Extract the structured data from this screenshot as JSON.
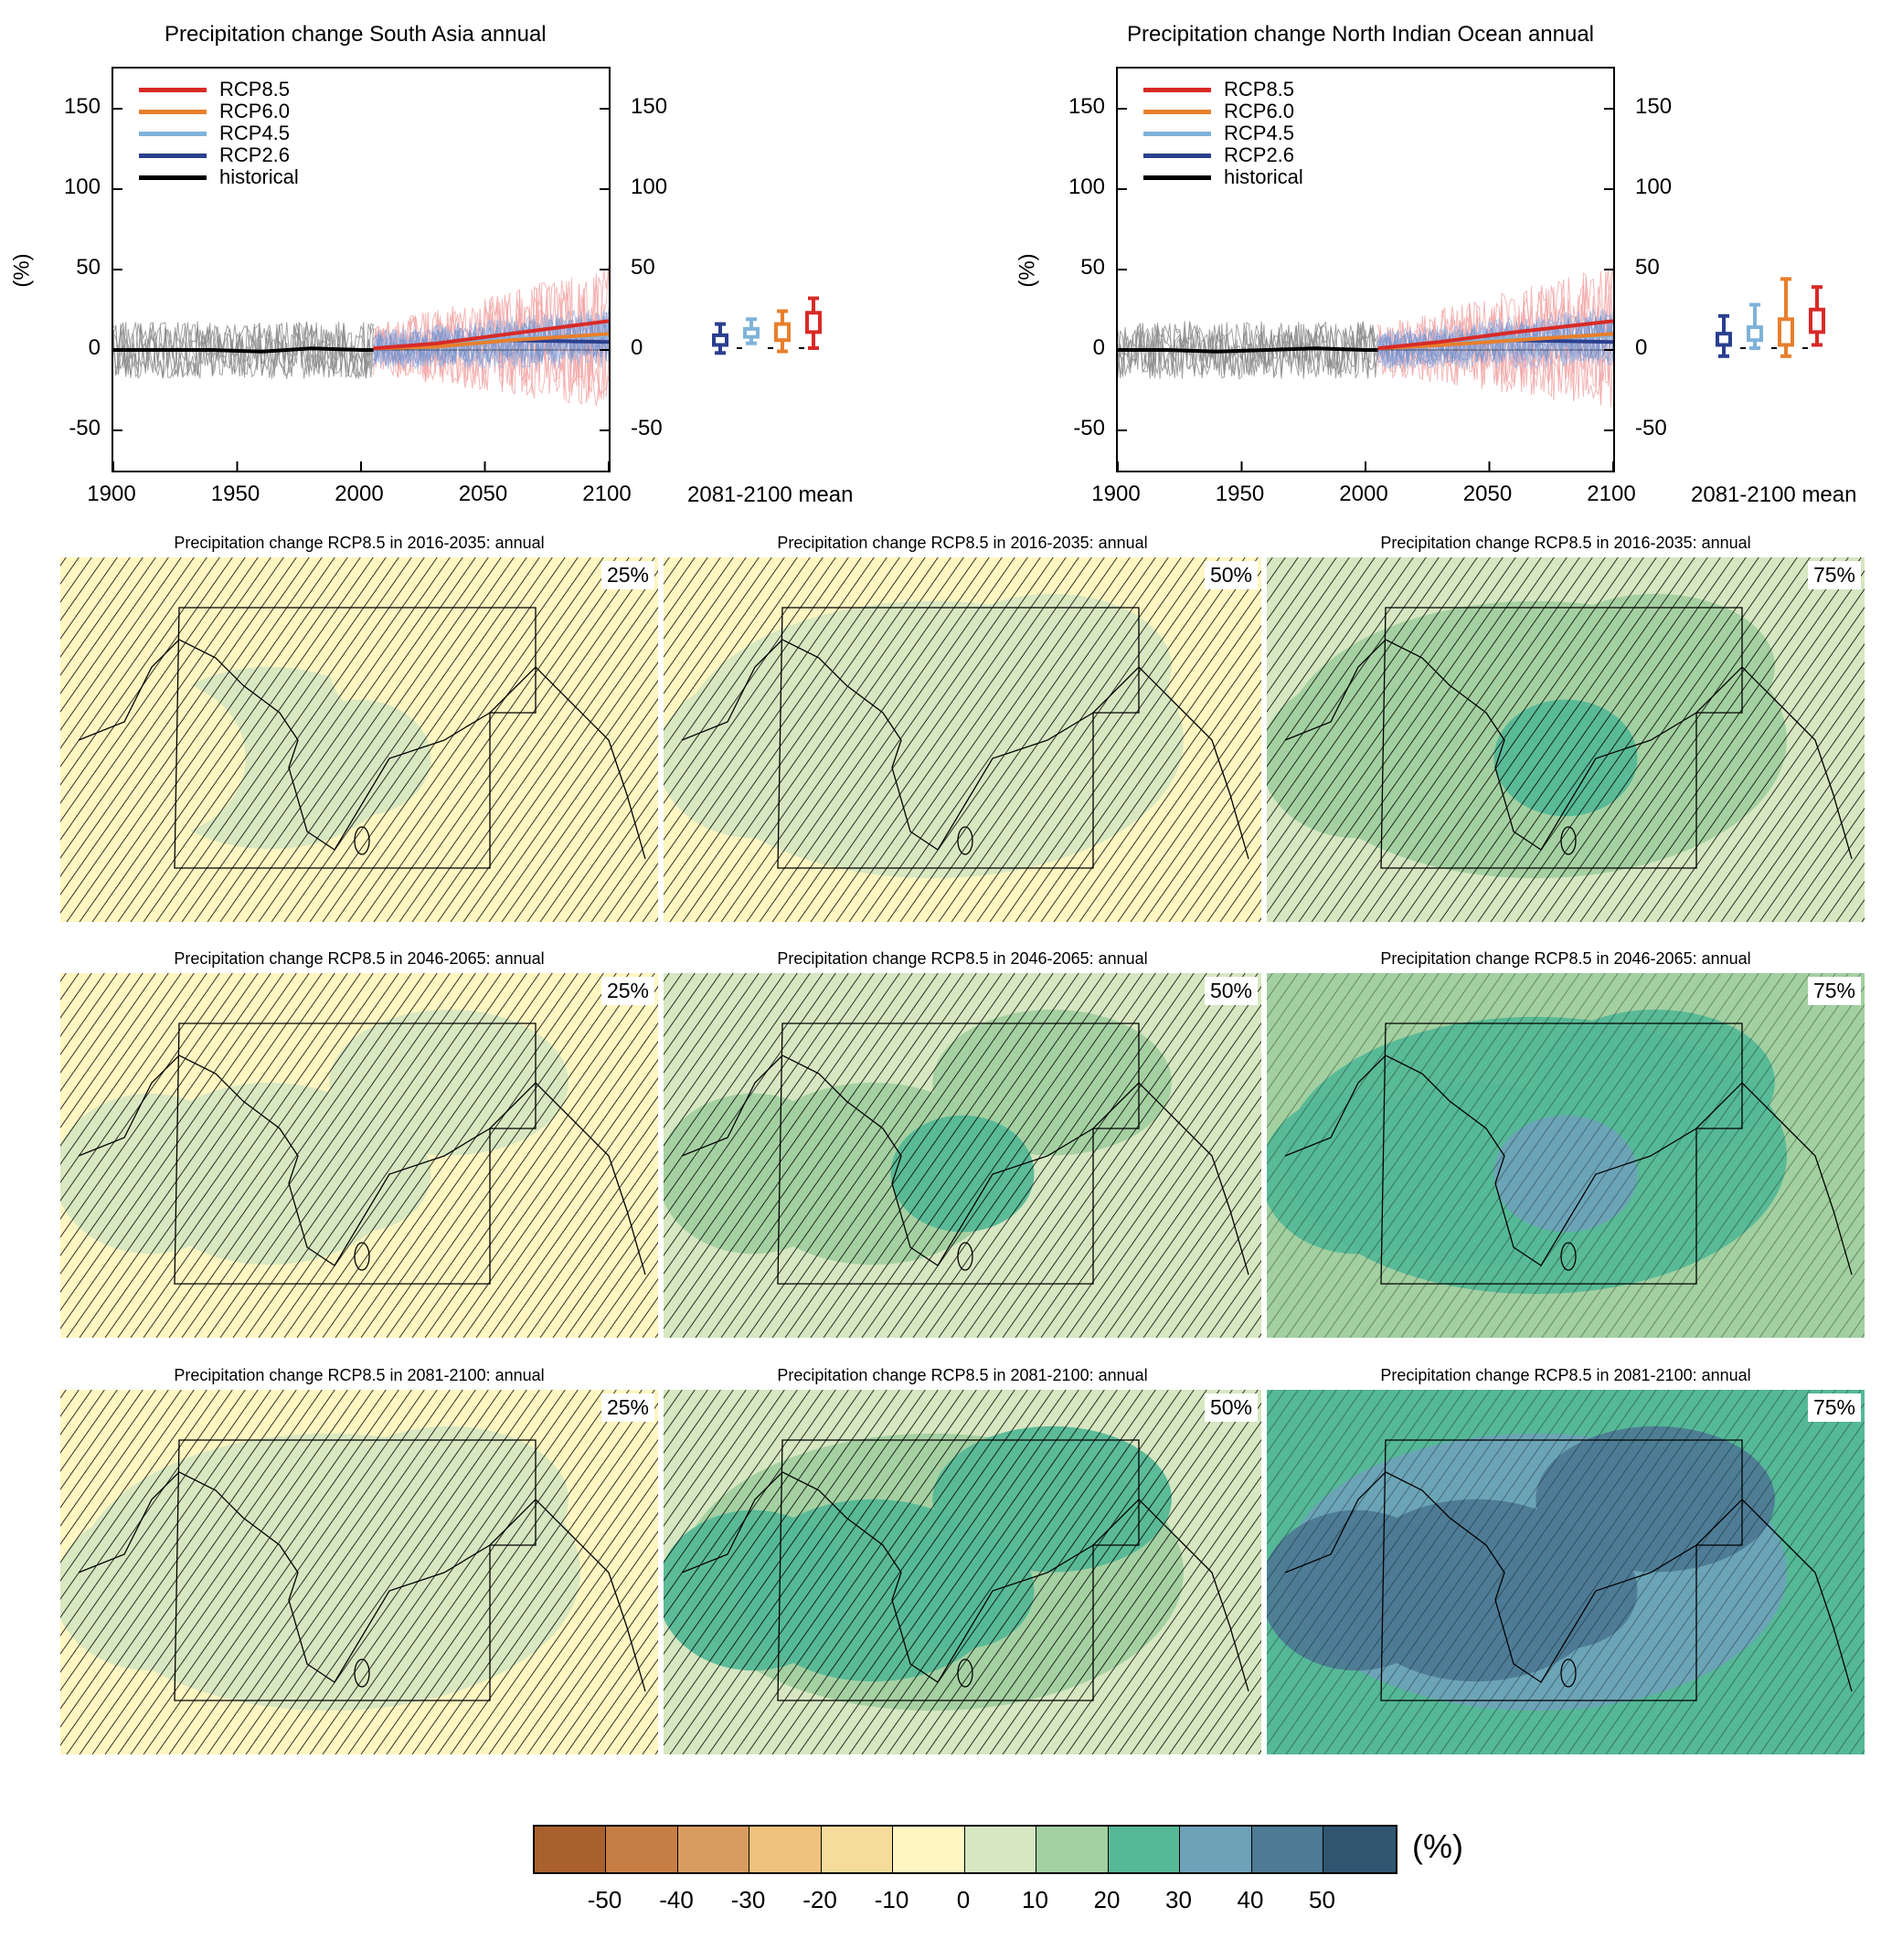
{
  "chart_data": [
    {
      "type": "line",
      "title": "Precipitation change South Asia annual",
      "ylabel": "(%)",
      "xlabel": "",
      "xlim": [
        1900,
        2100
      ],
      "ylim": [
        -75,
        175
      ],
      "x_ticks": [
        "1900",
        "1950",
        "2000",
        "2050",
        "2100"
      ],
      "y_ticks": [
        "150",
        "100",
        "50",
        "0",
        "-50"
      ],
      "legend": [
        "RCP8.5",
        "RCP6.0",
        "RCP4.5",
        "RCP2.6",
        "historical"
      ],
      "legend_position": "top-left",
      "series": [
        {
          "name": "historical",
          "color": "#000000",
          "x": [
            1900,
            1920,
            1940,
            1960,
            1980,
            2000,
            2005
          ],
          "values": [
            0,
            0,
            0,
            -1,
            1,
            0,
            0
          ]
        },
        {
          "name": "RCP2.6",
          "color": "#2b3f8f",
          "x": [
            2005,
            2030,
            2060,
            2100
          ],
          "values": [
            1,
            3,
            6,
            5
          ]
        },
        {
          "name": "RCP4.5",
          "color": "#7fb2d9",
          "x": [
            2005,
            2030,
            2060,
            2100
          ],
          "values": [
            1,
            3,
            7,
            9
          ]
        },
        {
          "name": "RCP6.0",
          "color": "#e87f2c",
          "x": [
            2005,
            2030,
            2060,
            2100
          ],
          "values": [
            1,
            2,
            6,
            10
          ]
        },
        {
          "name": "RCP8.5",
          "color": "#d82a27",
          "x": [
            2005,
            2030,
            2060,
            2100
          ],
          "values": [
            1,
            4,
            10,
            18
          ]
        }
      ],
      "inset": {
        "label": "2081-2100 mean",
        "boxes": [
          {
            "name": "RCP2.6",
            "color": "#2b3f8f",
            "min": -3,
            "q1": 2,
            "median": 5,
            "q3": 8,
            "max": 15
          },
          {
            "name": "RCP4.5",
            "color": "#7fb2d9",
            "min": 3,
            "q1": 7,
            "median": 10,
            "q3": 12,
            "max": 18
          },
          {
            "name": "RCP6.0",
            "color": "#e87f2c",
            "min": -2,
            "q1": 5,
            "median": 10,
            "q3": 15,
            "max": 23
          },
          {
            "name": "RCP8.5",
            "color": "#d82a27",
            "min": 0,
            "q1": 10,
            "median": 17,
            "q3": 22,
            "max": 31
          }
        ]
      }
    },
    {
      "type": "line",
      "title": "Precipitation change North Indian Ocean annual",
      "ylabel": "(%)",
      "xlabel": "",
      "xlim": [
        1900,
        2100
      ],
      "ylim": [
        -75,
        175
      ],
      "x_ticks": [
        "1900",
        "1950",
        "2000",
        "2050",
        "2100"
      ],
      "y_ticks": [
        "150",
        "100",
        "50",
        "0",
        "-50"
      ],
      "legend": [
        "RCP8.5",
        "RCP6.0",
        "RCP4.5",
        "RCP2.6",
        "historical"
      ],
      "legend_position": "top-left",
      "series": [
        {
          "name": "historical",
          "color": "#000000",
          "x": [
            1900,
            1920,
            1940,
            1960,
            1980,
            2000,
            2005
          ],
          "values": [
            0,
            0,
            -1,
            0,
            1,
            0,
            0
          ]
        },
        {
          "name": "RCP2.6",
          "color": "#2b3f8f",
          "x": [
            2005,
            2030,
            2060,
            2100
          ],
          "values": [
            1,
            4,
            6,
            5
          ]
        },
        {
          "name": "RCP4.5",
          "color": "#7fb2d9",
          "x": [
            2005,
            2030,
            2060,
            2100
          ],
          "values": [
            1,
            4,
            7,
            9
          ]
        },
        {
          "name": "RCP6.0",
          "color": "#e87f2c",
          "x": [
            2005,
            2030,
            2060,
            2100
          ],
          "values": [
            1,
            3,
            6,
            10
          ]
        },
        {
          "name": "RCP8.5",
          "color": "#d82a27",
          "x": [
            2005,
            2030,
            2060,
            2100
          ],
          "values": [
            1,
            5,
            11,
            18
          ]
        }
      ],
      "inset": {
        "label": "2081-2100 mean",
        "boxes": [
          {
            "name": "RCP2.6",
            "color": "#2b3f8f",
            "min": -5,
            "q1": 2,
            "median": 6,
            "q3": 9,
            "max": 20
          },
          {
            "name": "RCP4.5",
            "color": "#7fb2d9",
            "min": 0,
            "q1": 5,
            "median": 10,
            "q3": 13,
            "max": 27
          },
          {
            "name": "RCP6.0",
            "color": "#e87f2c",
            "min": -5,
            "q1": 2,
            "median": 10,
            "q3": 18,
            "max": 43
          },
          {
            "name": "RCP8.5",
            "color": "#d82a27",
            "min": 2,
            "q1": 10,
            "median": 18,
            "q3": 24,
            "max": 38
          }
        ]
      }
    },
    {
      "type": "heatmap",
      "maps": [
        {
          "title": "Precipitation change RCP8.5 in 2016-2035: annual",
          "percentile": "25%",
          "level": -2
        },
        {
          "title": "Precipitation change RCP8.5 in 2016-2035: annual",
          "percentile": "50%",
          "level": 3
        },
        {
          "title": "Precipitation change RCP8.5 in 2016-2035: annual",
          "percentile": "75%",
          "level": 10
        },
        {
          "title": "Precipitation change RCP8.5 in 2046-2065: annual",
          "percentile": "25%",
          "level": -1
        },
        {
          "title": "Precipitation change RCP8.5 in 2046-2065: annual",
          "percentile": "50%",
          "level": 8
        },
        {
          "title": "Precipitation change RCP8.5 in 2046-2065: annual",
          "percentile": "75%",
          "level": 20
        },
        {
          "title": "Precipitation change RCP8.5 in 2081-2100: annual",
          "percentile": "25%",
          "level": 2
        },
        {
          "title": "Precipitation change RCP8.5 in 2081-2100: annual",
          "percentile": "50%",
          "level": 15
        },
        {
          "title": "Precipitation change RCP8.5 in 2081-2100: annual",
          "percentile": "75%",
          "level": 35
        }
      ],
      "colorbar": {
        "unit": "(%)",
        "ticks": [
          "-50",
          "-40",
          "-30",
          "-20",
          "-10",
          "0",
          "10",
          "20",
          "30",
          "40",
          "50"
        ],
        "colors": [
          "#a9602d",
          "#c67e45",
          "#d99c60",
          "#eec27c",
          "#f5dc9b",
          "#fff6c2",
          "#d6e7c1",
          "#a2d0a0",
          "#55b897",
          "#6ea2b8",
          "#4d7a94",
          "#2f5570"
        ]
      }
    }
  ]
}
